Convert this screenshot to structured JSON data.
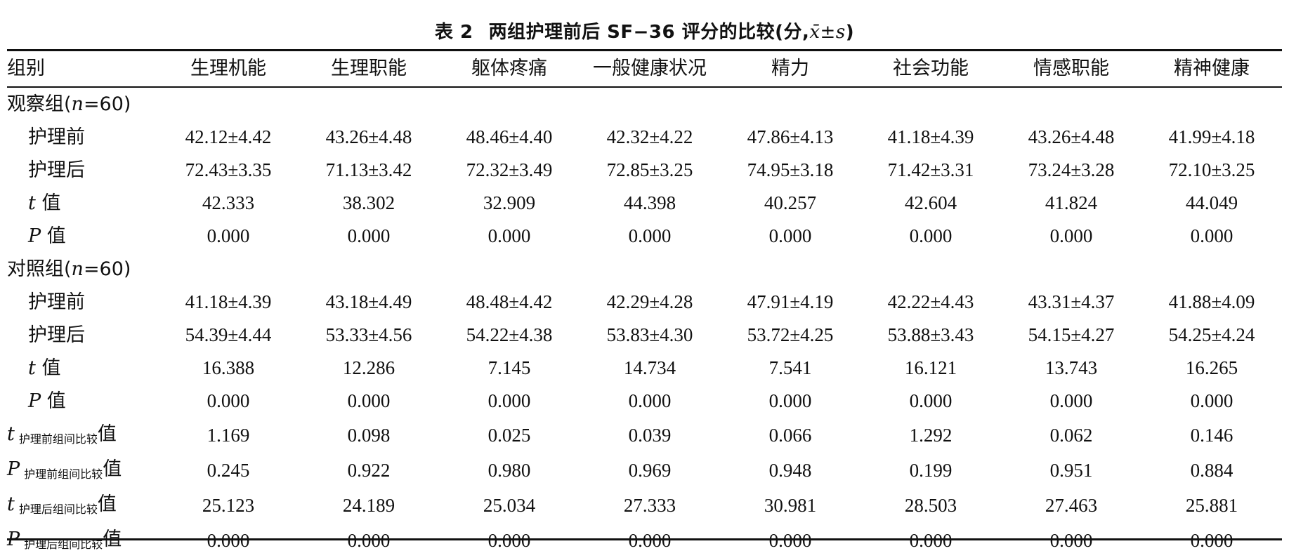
{
  "caption": {
    "label": "表 2",
    "title": "两组护理前后 SF−36 评分的比较(分,",
    "symbol": "x̄±s",
    "close": ")"
  },
  "table": {
    "headers": [
      "组别",
      "生理机能",
      "生理职能",
      "躯体疼痛",
      "一般健康状况",
      "精力",
      "社会功能",
      "情感职能",
      "精神健康"
    ],
    "observation_group": {
      "label_prefix": "观察组(",
      "label_n": "n",
      "label_suffix": "=60)",
      "rows": [
        {
          "label": "护理前",
          "values": [
            "42.12±4.42",
            "43.26±4.48",
            "48.46±4.40",
            "42.32±4.22",
            "47.86±4.13",
            "41.18±4.39",
            "43.26±4.48",
            "41.99±4.18"
          ]
        },
        {
          "label": "护理后",
          "values": [
            "72.43±3.35",
            "71.13±3.42",
            "72.32±3.49",
            "72.85±3.25",
            "74.95±3.18",
            "71.42±3.31",
            "73.24±3.28",
            "72.10±3.25"
          ]
        },
        {
          "stat": "t",
          "label": "值",
          "values": [
            "42.333",
            "38.302",
            "32.909",
            "44.398",
            "40.257",
            "42.604",
            "41.824",
            "44.049"
          ]
        },
        {
          "stat": "P",
          "label": "值",
          "values": [
            "0.000",
            "0.000",
            "0.000",
            "0.000",
            "0.000",
            "0.000",
            "0.000",
            "0.000"
          ]
        }
      ]
    },
    "control_group": {
      "label_prefix": "对照组(",
      "label_n": "n",
      "label_suffix": "=60)",
      "rows": [
        {
          "label": "护理前",
          "values": [
            "41.18±4.39",
            "43.18±4.49",
            "48.48±4.42",
            "42.29±4.28",
            "47.91±4.19",
            "42.22±4.43",
            "43.31±4.37",
            "41.88±4.09"
          ]
        },
        {
          "label": "护理后",
          "values": [
            "54.39±4.44",
            "53.33±4.56",
            "54.22±4.38",
            "53.83±4.30",
            "53.72±4.25",
            "53.88±3.43",
            "54.15±4.27",
            "54.25±4.24"
          ]
        },
        {
          "stat": "t",
          "label": "值",
          "values": [
            "16.388",
            "12.286",
            "7.145",
            "14.734",
            "7.541",
            "16.121",
            "13.743",
            "16.265"
          ]
        },
        {
          "stat": "P",
          "label": "值",
          "values": [
            "0.000",
            "0.000",
            "0.000",
            "0.000",
            "0.000",
            "0.000",
            "0.000",
            "0.000"
          ]
        }
      ]
    },
    "between_group": [
      {
        "stat": "t",
        "subscript": "护理前组间比较",
        "label": "值",
        "values": [
          "1.169",
          "0.098",
          "0.025",
          "0.039",
          "0.066",
          "1.292",
          "0.062",
          "0.146"
        ]
      },
      {
        "stat": "P",
        "subscript": "护理前组间比较",
        "label": "值",
        "values": [
          "0.245",
          "0.922",
          "0.980",
          "0.969",
          "0.948",
          "0.199",
          "0.951",
          "0.884"
        ]
      },
      {
        "stat": "t",
        "subscript": "护理后组间比较",
        "label": "值",
        "values": [
          "25.123",
          "24.189",
          "25.034",
          "27.333",
          "30.981",
          "28.503",
          "27.463",
          "25.881"
        ]
      },
      {
        "stat": "P",
        "subscript": "护理后组间比较",
        "label": "值",
        "values": [
          "0.000",
          "0.000",
          "0.000",
          "0.000",
          "0.000",
          "0.000",
          "0.000",
          "0.000"
        ]
      }
    ]
  }
}
